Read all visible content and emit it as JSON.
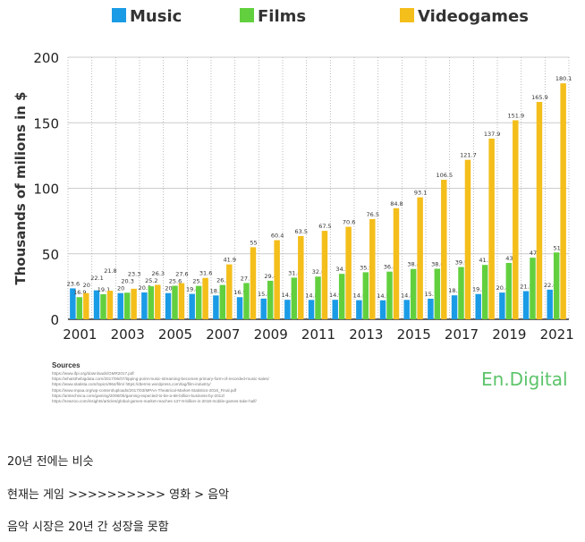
{
  "chart_data": {
    "type": "bar",
    "title": "",
    "ylabel": "Thousands of milions in $",
    "xlabel": "",
    "ylim": [
      0,
      200
    ],
    "yticks": [
      0,
      50,
      100,
      150,
      200
    ],
    "categories": [
      "2001",
      "2002",
      "2003",
      "2004",
      "2005",
      "2006",
      "2007",
      "2008",
      "2009",
      "2010",
      "2011",
      "2012",
      "2013",
      "2014",
      "2015",
      "2016",
      "2017",
      "2018",
      "2019",
      "2020",
      "2021"
    ],
    "xtick_labels": [
      "2001",
      "2003",
      "2005",
      "2007",
      "2009",
      "2011",
      "2013",
      "2015",
      "2017",
      "2019",
      "2021"
    ],
    "legend_position": "top",
    "series": [
      {
        "name": "Music",
        "color": "#1a9be6",
        "values": [
          23.6,
          22.1,
          20,
          20.5,
          20,
          19.4,
          18.2,
          16.9,
          15.8,
          14.9,
          14.8,
          14.9,
          14.6,
          14.5,
          14.8,
          15.7,
          18.3,
          19.3,
          20.4,
          21.5,
          22.6
        ]
      },
      {
        "name": "Films",
        "color": "#62d03e",
        "values": [
          16.9,
          19.1,
          20.3,
          25.2,
          25.6,
          25.5,
          26.2,
          27.7,
          29.4,
          31.8,
          32.6,
          34.7,
          35.9,
          36.4,
          38.4,
          38.6,
          39.9,
          41.5,
          43,
          47,
          51
        ]
      },
      {
        "name": "Videogames",
        "color": "#f4be1b",
        "values": [
          20,
          21.8,
          23.3,
          26.3,
          27.6,
          31.6,
          41.9,
          55,
          60.4,
          63.5,
          67.5,
          70.6,
          76.5,
          84.8,
          93.1,
          106.5,
          121.7,
          137.9,
          151.9,
          165.9,
          180.1
        ]
      }
    ]
  },
  "sources": {
    "title": "Sources",
    "links": [
      "https://www.ifpi.org/downloads/GMR2017.pdf",
      "https://whatsthebigdata.com/2017/06/07/tipping-point-music-streaming-becomes-primary-form-of-recorded-music-sales/",
      "https://www.statista.com/topics/964/film/          https://dterms.wordpress.com/tag/film-industry/",
      "https://www.mpaa.org/wp-content/uploads/2017/03/MPAA-Theatrical-Market-Statistics-2016_Final.pdf",
      "https://arstechnica.com/gaming/2008/06/gaming-expected-to-be-a-68-billion-business-by-2012/",
      "https://newzoo.com/insights/articles/global-games-market-reaches-137-9-billion-in-2018-mobile-games-take-half/"
    ]
  },
  "logo": "En.Digital",
  "post": {
    "line1": "20년 전에는 비슷",
    "line2": "현재는 게임 >>>>>>>>>> 영화 > 음악",
    "line3": "음악 시장은 20년 간 성장을 못함"
  }
}
